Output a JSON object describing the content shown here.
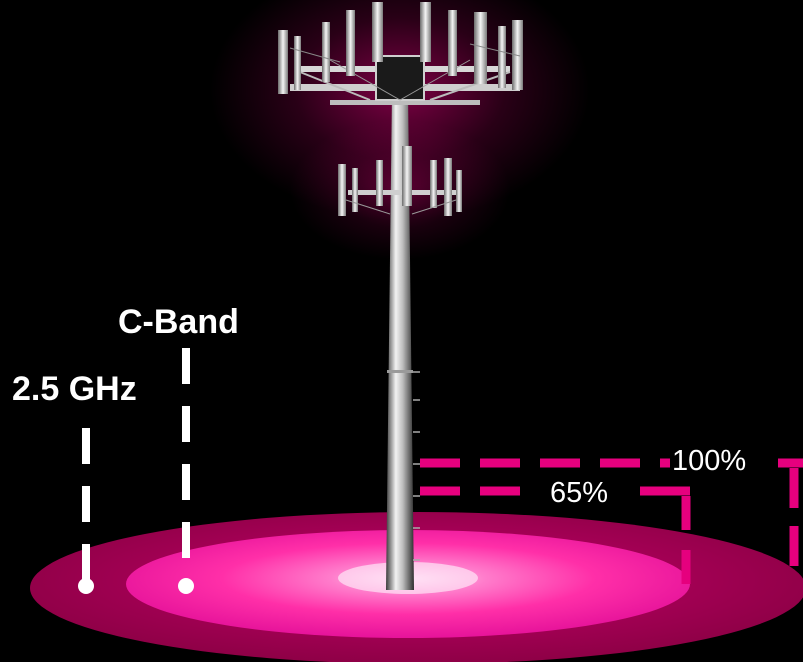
{
  "diagram": {
    "bands": [
      {
        "label": "C-Band"
      },
      {
        "label": "2.5 GHz"
      }
    ],
    "coverage": [
      {
        "label": "100%",
        "value": 100
      },
      {
        "label": "65%",
        "value": 65
      }
    ],
    "colors": {
      "background": "#000000",
      "accent": "#e6007e",
      "outer_disc": "#a8004f",
      "inner_disc": "#ff2fa8",
      "marker": "#ffffff"
    }
  }
}
